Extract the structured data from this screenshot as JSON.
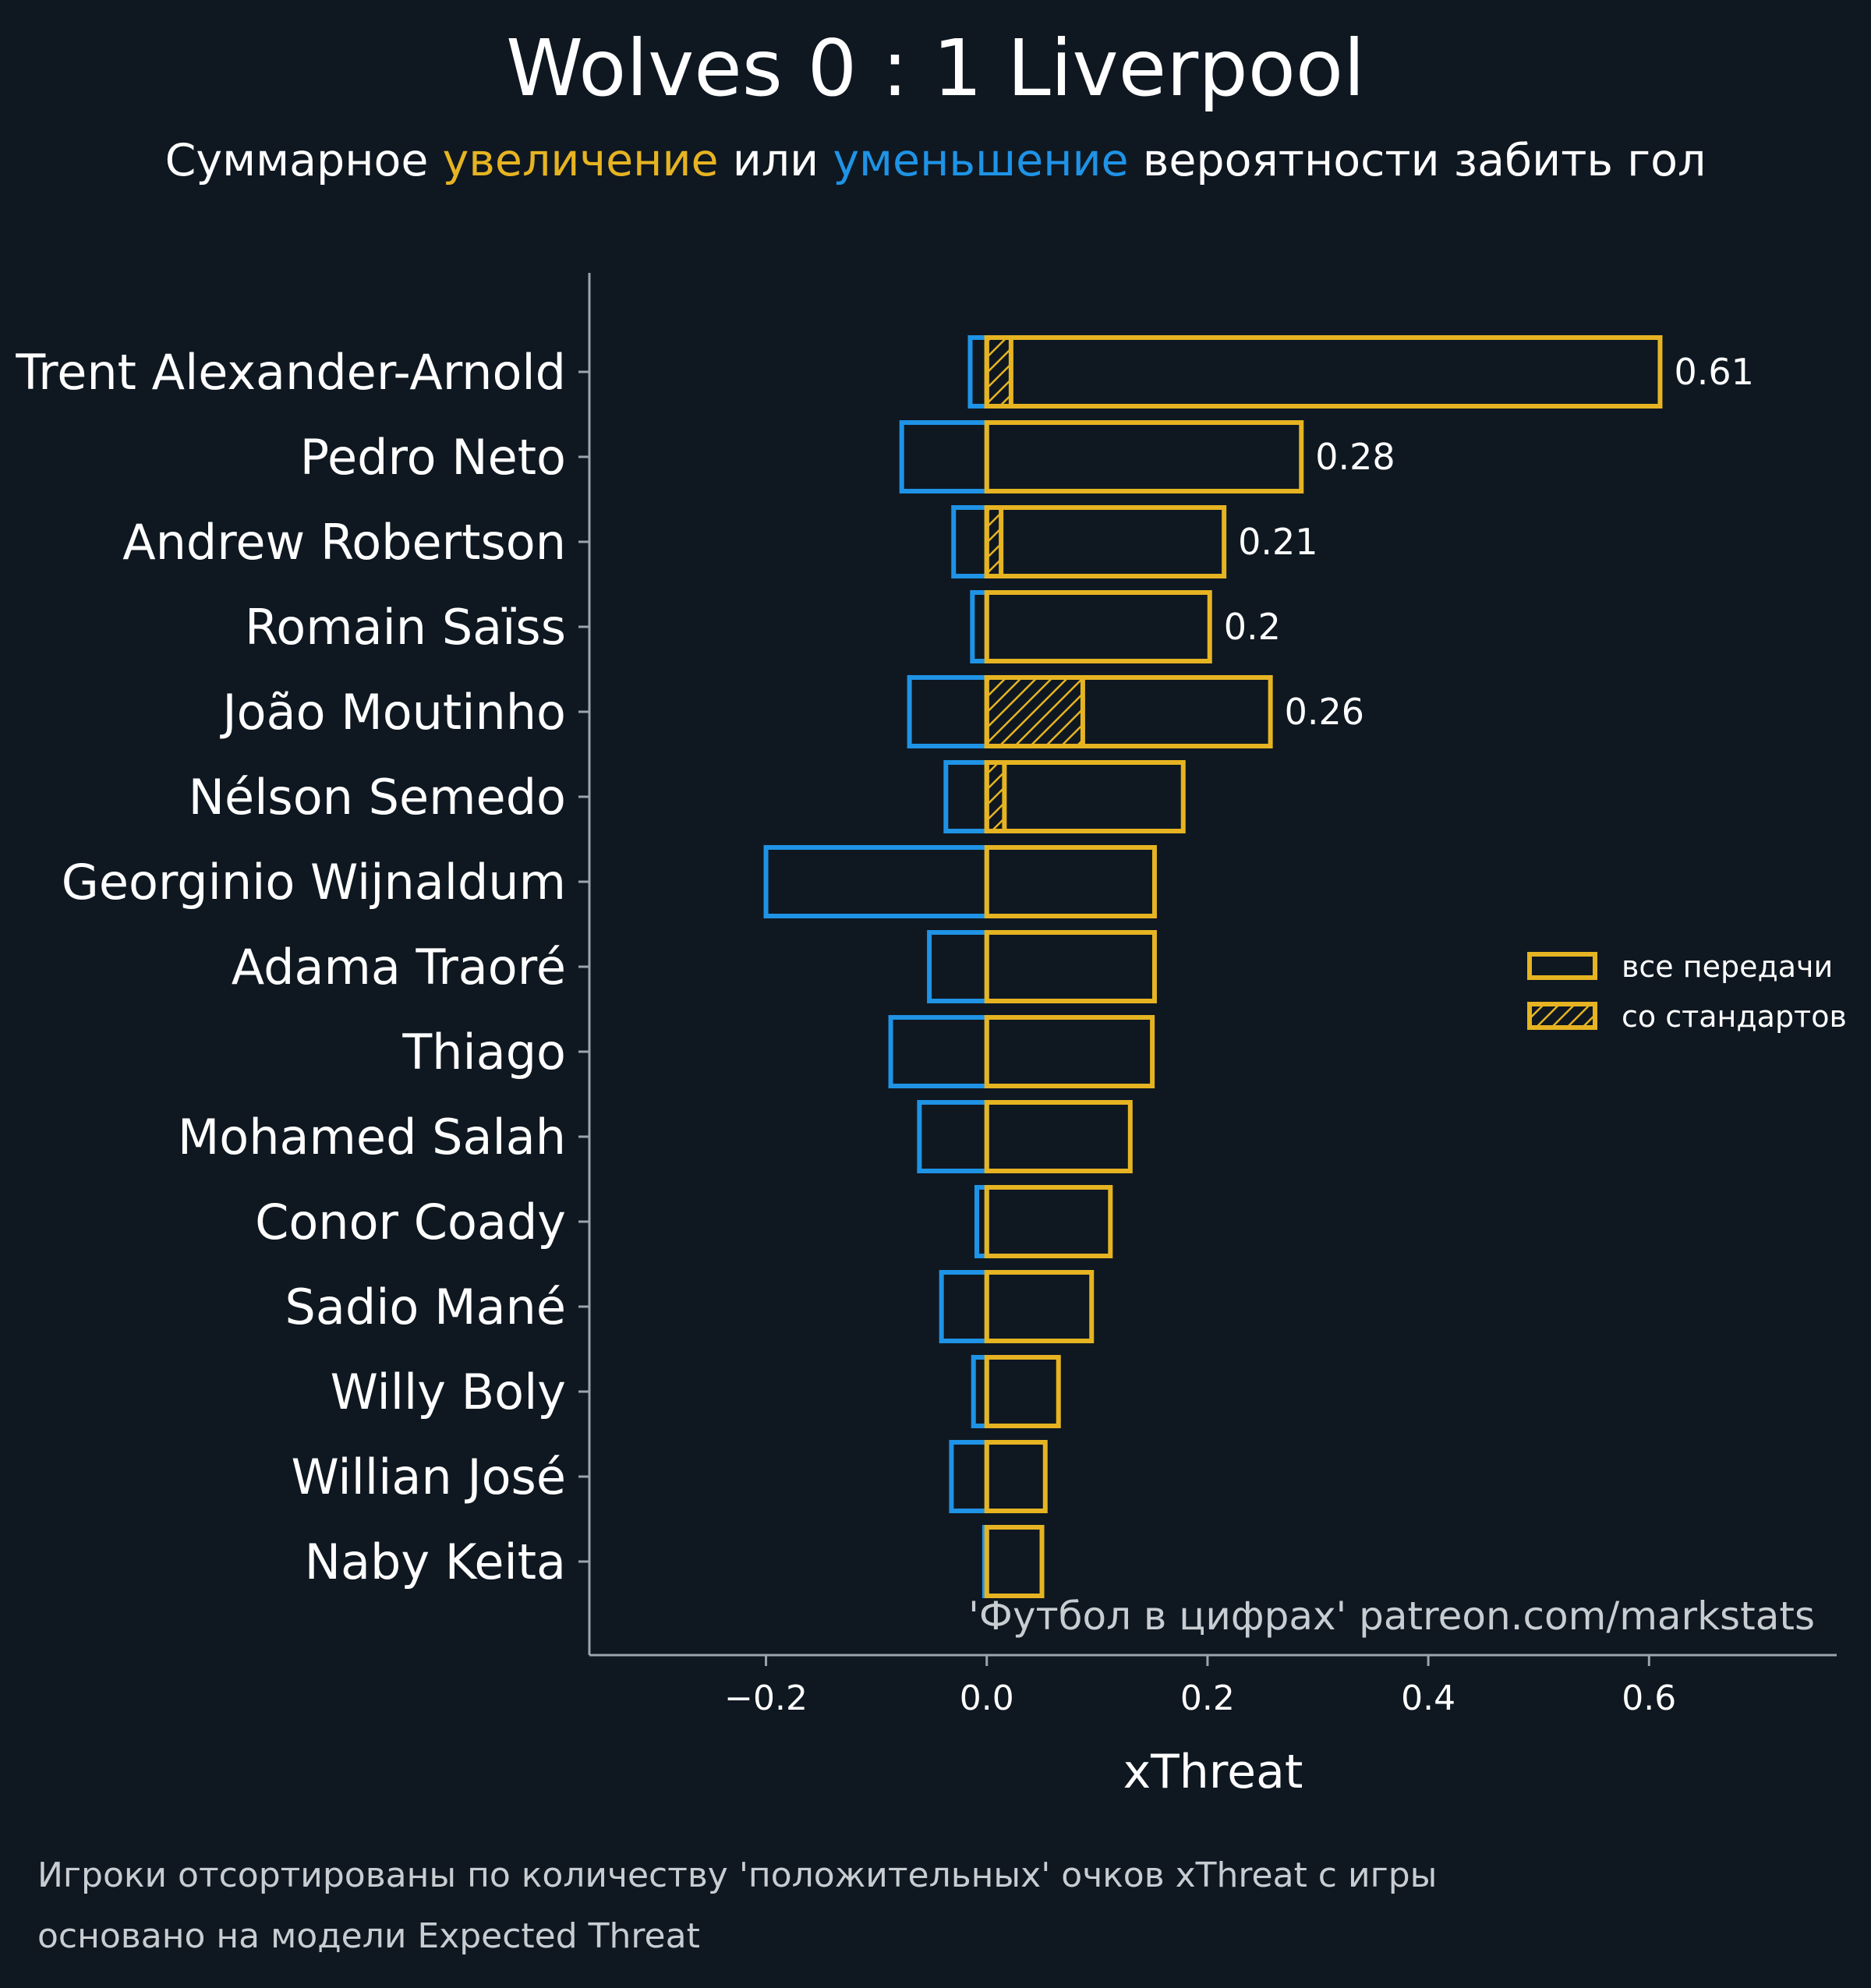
{
  "colors": {
    "background": "#0f1821",
    "positive": "#e6b422",
    "negative": "#1f93e6",
    "text": "#ffffff",
    "muted": "#c8cdd2",
    "axis": "#9aa5ad"
  },
  "header": {
    "title": "Wolves 0 : 1 Liverpool",
    "subtitle_part1": "Суммарное ",
    "subtitle_positive": "увеличение",
    "subtitle_part2": " или ",
    "subtitle_negative": "уменьшение",
    "subtitle_part3": " вероятности забить гол"
  },
  "legend": {
    "all_passes": "все передачи",
    "set_pieces": "со стандартов"
  },
  "watermark": "'Футбол в цифрах' patreon.com/markstats",
  "footer": {
    "note_line1": "Игроки отсортированы по количеству 'положительных' очков xThreat с игры",
    "note_line2": "основано на модели Expected Threat"
  },
  "chart_data": {
    "type": "bar",
    "orientation": "horizontal",
    "xlabel": "xThreat",
    "xlim": [
      -0.36,
      0.77
    ],
    "xticks": [
      -0.2,
      0.0,
      0.2,
      0.4,
      0.6
    ],
    "xtick_labels": [
      "−0.2",
      "0.0",
      "0.2",
      "0.4",
      "0.6"
    ],
    "legend_position": "right",
    "categories": [
      "Trent Alexander-Arnold",
      "Pedro Neto",
      "Andrew Robertson",
      "Romain Saïss",
      "João Moutinho",
      "Nélson Semedo",
      "Georginio Wijnaldum",
      "Adama Traoré",
      "Thiago",
      "Mohamed Salah",
      "Conor Coady",
      "Sadio Mané",
      "Willy Boly",
      "Willian José",
      "Naby Keita"
    ],
    "series": [
      {
        "name": "все передачи (положительные)",
        "values": [
          0.61,
          0.285,
          0.215,
          0.202,
          0.257,
          0.178,
          0.152,
          0.152,
          0.15,
          0.13,
          0.112,
          0.095,
          0.065,
          0.053,
          0.05
        ]
      },
      {
        "name": "все передачи (отрицательные)",
        "values": [
          -0.015,
          -0.077,
          -0.03,
          -0.013,
          -0.07,
          -0.037,
          -0.2,
          -0.052,
          -0.087,
          -0.061,
          -0.009,
          -0.041,
          -0.012,
          -0.032,
          -0.002
        ]
      },
      {
        "name": "со стандартов",
        "values": [
          0.022,
          0.0,
          0.013,
          0.0,
          0.087,
          0.016,
          0.0,
          0.0,
          0.0,
          0.0,
          0.0,
          0.0,
          0.0,
          0.0,
          0.0
        ]
      }
    ],
    "value_labels": [
      "0.61",
      "0.28",
      "0.21",
      "0.2",
      "0.26",
      "",
      "",
      "",
      "",
      "",
      "",
      "",
      "",
      "",
      ""
    ]
  }
}
